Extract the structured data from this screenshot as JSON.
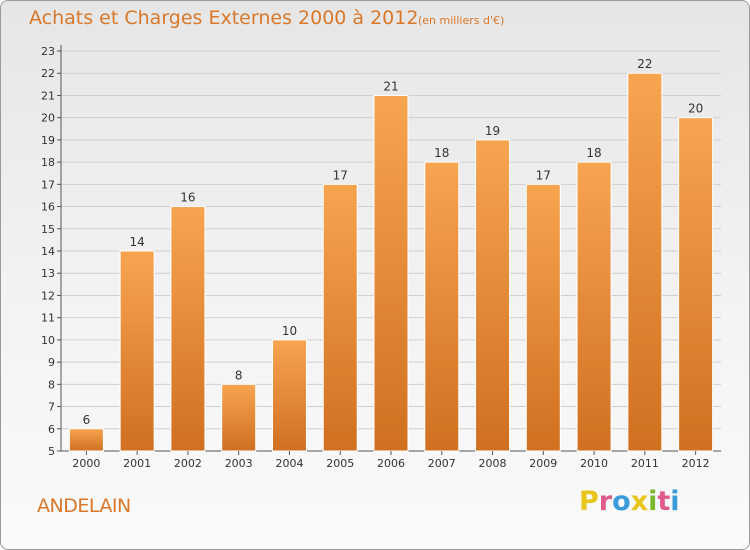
{
  "header": {
    "title": "Achats et Charges Externes 2000 à 2012",
    "unit": "(en milliers d'€)"
  },
  "footer": {
    "commune": "ANDELAIN",
    "logo_letters": [
      "P",
      "r",
      "o",
      "x",
      "i",
      "t",
      "i"
    ],
    "logo_colors": [
      "#e8c51a",
      "#e05b8c",
      "#3a9bd8",
      "#e8c51a",
      "#7ab82e",
      "#e05b8c",
      "#3a9bd8"
    ]
  },
  "colors": {
    "bar_light": "#f7a450",
    "bar_dark": "#d07020",
    "title": "#d9782a"
  },
  "chart_data": {
    "type": "bar",
    "categories": [
      "2000",
      "2001",
      "2002",
      "2003",
      "2004",
      "2005",
      "2006",
      "2007",
      "2008",
      "2009",
      "2010",
      "2011",
      "2012"
    ],
    "values": [
      6,
      14,
      16,
      8,
      10,
      17,
      21,
      18,
      19,
      17,
      18,
      22,
      20
    ],
    "ylim": [
      5,
      23
    ],
    "yticks": [
      5,
      6,
      7,
      8,
      9,
      10,
      11,
      12,
      13,
      14,
      15,
      16,
      17,
      18,
      19,
      20,
      21,
      22,
      23
    ],
    "grid": true
  }
}
